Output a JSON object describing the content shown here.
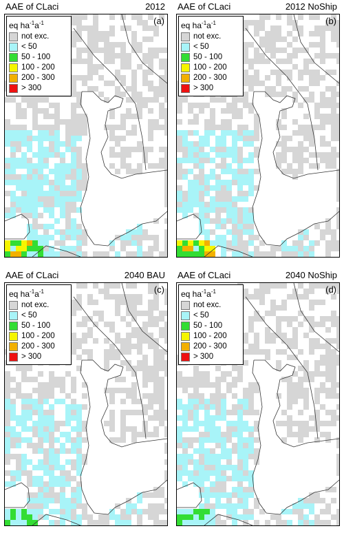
{
  "colors": {
    "not_exc": "#d6d6d6",
    "lt50": "#a8f4f8",
    "r50_100": "#33dd33",
    "r100_200": "#f5f500",
    "r200_300": "#f2b000",
    "gt300": "#ee1111",
    "land": "#ffffff",
    "border": "#333333"
  },
  "legend": {
    "units_base": "eq ha",
    "units_exp1": "-1",
    "units_mid": "a",
    "units_exp2": "-1",
    "items": [
      {
        "label": "not exc.",
        "color": "#d6d6d6"
      },
      {
        "label": "< 50",
        "color": "#a8f4f8"
      },
      {
        "label": "50 - 100",
        "color": "#33dd33"
      },
      {
        "label": "100 - 200",
        "color": "#f5f500"
      },
      {
        "label": "200 - 300",
        "color": "#f2b000"
      },
      {
        "label": "> 300",
        "color": "#ee1111"
      }
    ]
  },
  "panels": [
    {
      "title": "AAE of CLaci",
      "scenario": "2012",
      "label": "(a)"
    },
    {
      "title": "AAE of CLaci",
      "scenario": "2012 NoShip",
      "label": "(b)"
    },
    {
      "title": "AAE of CLaci",
      "scenario": "2040 BAU",
      "label": "(c)"
    },
    {
      "title": "AAE of CLaci",
      "scenario": "2040 NoShip",
      "label": "(d)"
    }
  ]
}
